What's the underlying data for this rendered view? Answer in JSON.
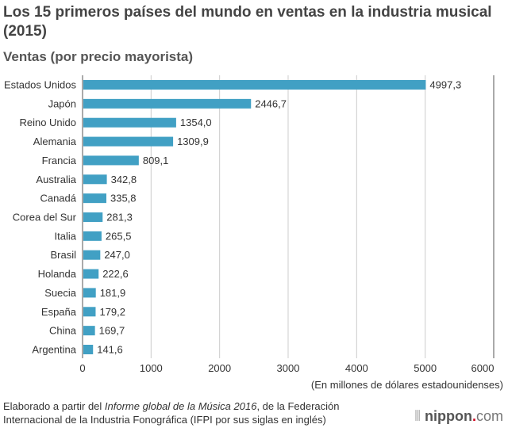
{
  "chart_data": {
    "type": "bar",
    "orientation": "horizontal",
    "title": "Los 15 primeros países del mundo en ventas en la industria musical (2015)",
    "subtitle": "Ventas (por precio mayorista)",
    "categories": [
      "Estados Unidos",
      "Japón",
      "Reino Unido",
      "Alemania",
      "Francia",
      "Australia",
      "Canadá",
      "Corea del Sur",
      "Italia",
      "Brasil",
      "Holanda",
      "Suecia",
      "España",
      "China",
      "Argentina"
    ],
    "values": [
      4997.3,
      2446.7,
      1354.0,
      1309.9,
      809.1,
      342.8,
      335.8,
      281.3,
      265.5,
      247.0,
      222.6,
      181.9,
      179.2,
      169.7,
      141.6
    ],
    "value_labels": [
      "4997,3",
      "2446,7",
      "1354,0",
      "1309,9",
      "809,1",
      "342,8",
      "335,8",
      "281,3",
      "265,5",
      "247,0",
      "222,6",
      "181,9",
      "179,2",
      "169,7",
      "141,6"
    ],
    "xlim": [
      0,
      6000
    ],
    "xticks": [
      "0",
      "1000",
      "2000",
      "3000",
      "4000",
      "5000",
      "6000"
    ],
    "xlabel": "(En millones de dólares estadounidenses)",
    "grid": true,
    "bar_color": "#41a0c4"
  },
  "footer": {
    "source_prefix": "Elaborado a partir del ",
    "source_italic": "Informe global de la Música 2016",
    "source_suffix": ", de la Federación Internacional de la Industria Fonográfica (IFPI por sus siglas en inglés)",
    "logo": "nippon.com"
  }
}
